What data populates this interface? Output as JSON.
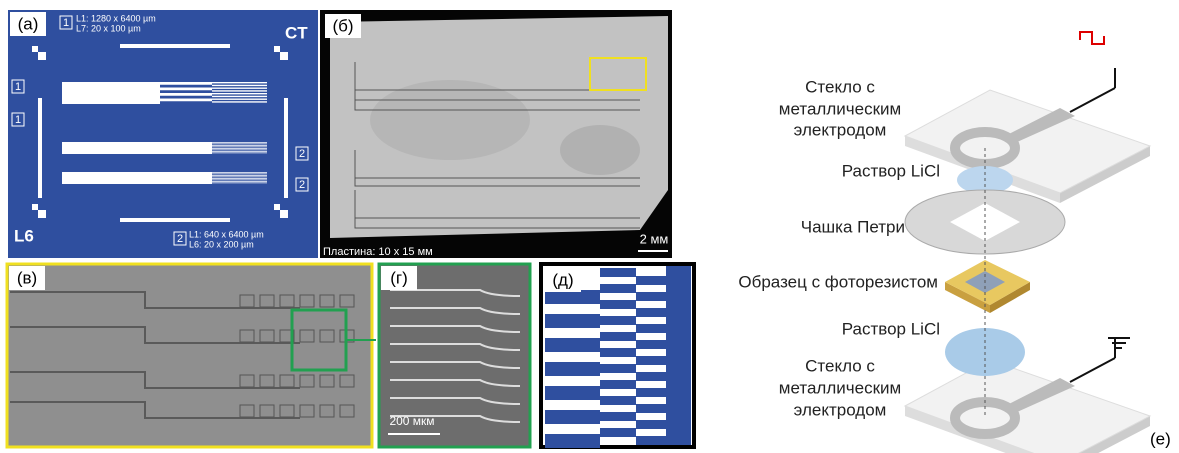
{
  "panels": {
    "a": {
      "label": "(а)",
      "legend_top": {
        "number": "1",
        "lines": [
          "L1: 1280 x 6400 µm",
          "L7: 20 x 100 µm"
        ]
      },
      "corner_top_right": "CT",
      "corner_bottom_left": "L6",
      "legend_bottom": {
        "number": "2",
        "lines": [
          "L1: 640 x 6400 µm",
          "L6: 20 x 200 µm"
        ]
      },
      "markers": [
        "1",
        "1",
        "2",
        "2"
      ]
    },
    "b": {
      "label": "(б)",
      "caption": "Пластина: 10 x 15 мм",
      "scale": "2 мм"
    },
    "c": {
      "label": "(в)"
    },
    "d": {
      "label": "(г)",
      "scale": "200 мкм"
    },
    "e": {
      "label": "(д)"
    },
    "f": {
      "label": "(е)",
      "labels": [
        {
          "lines": [
            "Стекло с",
            "металлическим",
            "электродом"
          ]
        },
        {
          "lines": [
            "Раствор LiCl"
          ]
        },
        {
          "lines": [
            "Чашка Петри"
          ]
        },
        {
          "lines": [
            "Образец с фоторезистом"
          ]
        },
        {
          "lines": [
            "Раствор LiCl"
          ]
        },
        {
          "lines": [
            "Стекло с",
            "металлическим",
            "электродом"
          ]
        }
      ]
    }
  }
}
